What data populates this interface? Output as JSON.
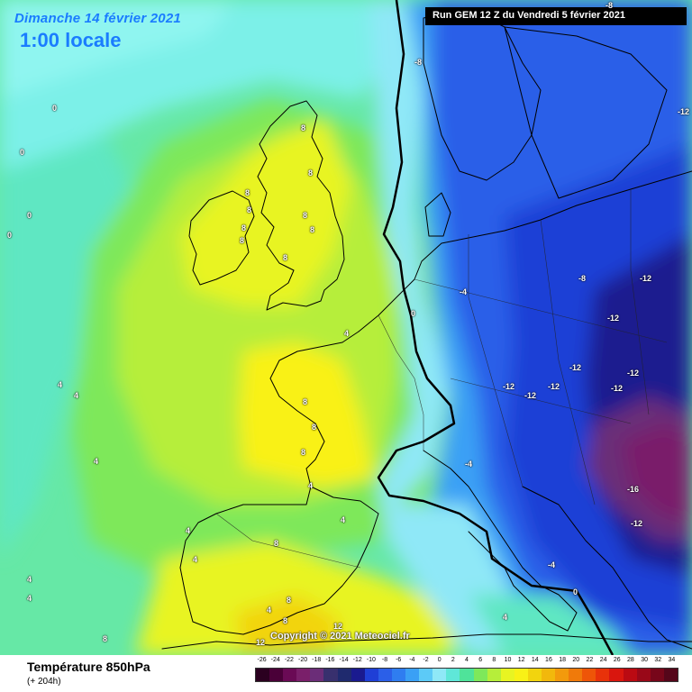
{
  "header": {
    "date": "Dimanche 14 février 2021",
    "time": "1:00 locale",
    "run": "Run GEM 12 Z du Vendredi 5 février 2021"
  },
  "footer": {
    "parameter": "Température 850hPa",
    "lead_time": "(+ 204h)",
    "copyright": "Copyright © 2021 Meteociel.fr"
  },
  "legend": {
    "ticks": [
      "-26",
      "-24",
      "-22",
      "-20",
      "-18",
      "-16",
      "-14",
      "-12",
      "-10",
      "-8",
      "-6",
      "-4",
      "-2",
      "0",
      "2",
      "4",
      "6",
      "8",
      "10",
      "12",
      "14",
      "16",
      "18",
      "20",
      "22",
      "24",
      "26",
      "28",
      "30",
      "32",
      "34"
    ],
    "colors": [
      "#2b0020",
      "#4a0038",
      "#6a0a55",
      "#7a1f6a",
      "#6b2d78",
      "#38306e",
      "#1f2a6e",
      "#1a1a8f",
      "#1f3fd6",
      "#2b5fe8",
      "#2f7df0",
      "#3aa0f5",
      "#5ccaf7",
      "#8fe8f7",
      "#5fe7d8",
      "#4fe39a",
      "#7ee85a",
      "#b6ee3a",
      "#e8f422",
      "#f9f116",
      "#f2d40e",
      "#f2b80c",
      "#f39a0c",
      "#f07a0a",
      "#ee5508",
      "#e8320a",
      "#d9160e",
      "#bb0a12",
      "#990818",
      "#77061a",
      "#55061a"
    ]
  },
  "colors": {
    "ocean_cold": "#5ce0d8",
    "mild_green": "#7ee85a",
    "warm_yellow": "#f9f116",
    "cold_blue": "#1f3fd6",
    "very_cold": "#6b2d78"
  },
  "isotherm_labels": [
    "0",
    "0",
    "0",
    "0",
    "0",
    "-8",
    "-8",
    "-12",
    "-8",
    "-12",
    "-4",
    "-12",
    "-12",
    "-12",
    "-12",
    "-12",
    "-12",
    "-12",
    "-4",
    "-16",
    "-12",
    "-4",
    "0",
    "8",
    "8",
    "8",
    "8",
    "8",
    "8",
    "8",
    "8",
    "8",
    "8",
    "8",
    "8",
    "4",
    "4",
    "4",
    "4",
    "4",
    "4",
    "4",
    "4",
    "4",
    "4",
    "4",
    "8",
    "8",
    "8",
    "4",
    "8",
    "12",
    "12"
  ]
}
